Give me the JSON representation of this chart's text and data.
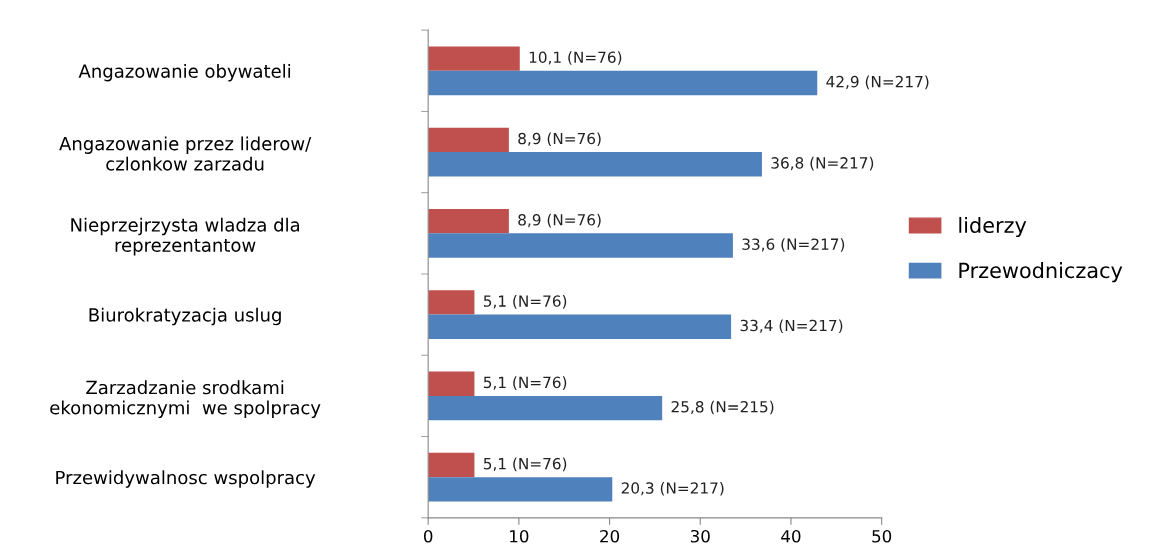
{
  "chart_data": {
    "type": "bar",
    "orientation": "horizontal",
    "categories": [
      "Angazowanie obywateli",
      "Angazowanie przez liderow/\nczlonkow zarzadu",
      "Nieprzejrzysta wladza dla\nreprezentantow",
      "Biurokratyzacja uslug",
      "Zarzadzanie srodkami\nekonomicznymi  we spolpracy",
      "Przewidywalnosc wspolpracy"
    ],
    "series": [
      {
        "name": "liderzy",
        "color": "#c0504d",
        "values": [
          10.1,
          8.9,
          8.9,
          5.1,
          5.1,
          5.1
        ],
        "value_labels": [
          "10,1 (N=76)",
          "8,9 (N=76)",
          "8,9 (N=76)",
          "5,1 (N=76)",
          "5,1 (N=76)",
          "5,1 (N=76)"
        ]
      },
      {
        "name": "Przewodniczacy",
        "color": "#4f81bd",
        "values": [
          42.9,
          36.8,
          33.6,
          33.4,
          25.8,
          20.3
        ],
        "value_labels": [
          "42,9 (N=217)",
          "36,8 (N=217)",
          "33,6 (N=217)",
          "33,4 (N=217)",
          "25,8 (N=215)",
          "20,3 (N=217)"
        ]
      }
    ],
    "xlim": [
      0,
      50
    ],
    "xticks": [
      0,
      10,
      20,
      30,
      40,
      50
    ],
    "grid": false,
    "legend": "right"
  }
}
